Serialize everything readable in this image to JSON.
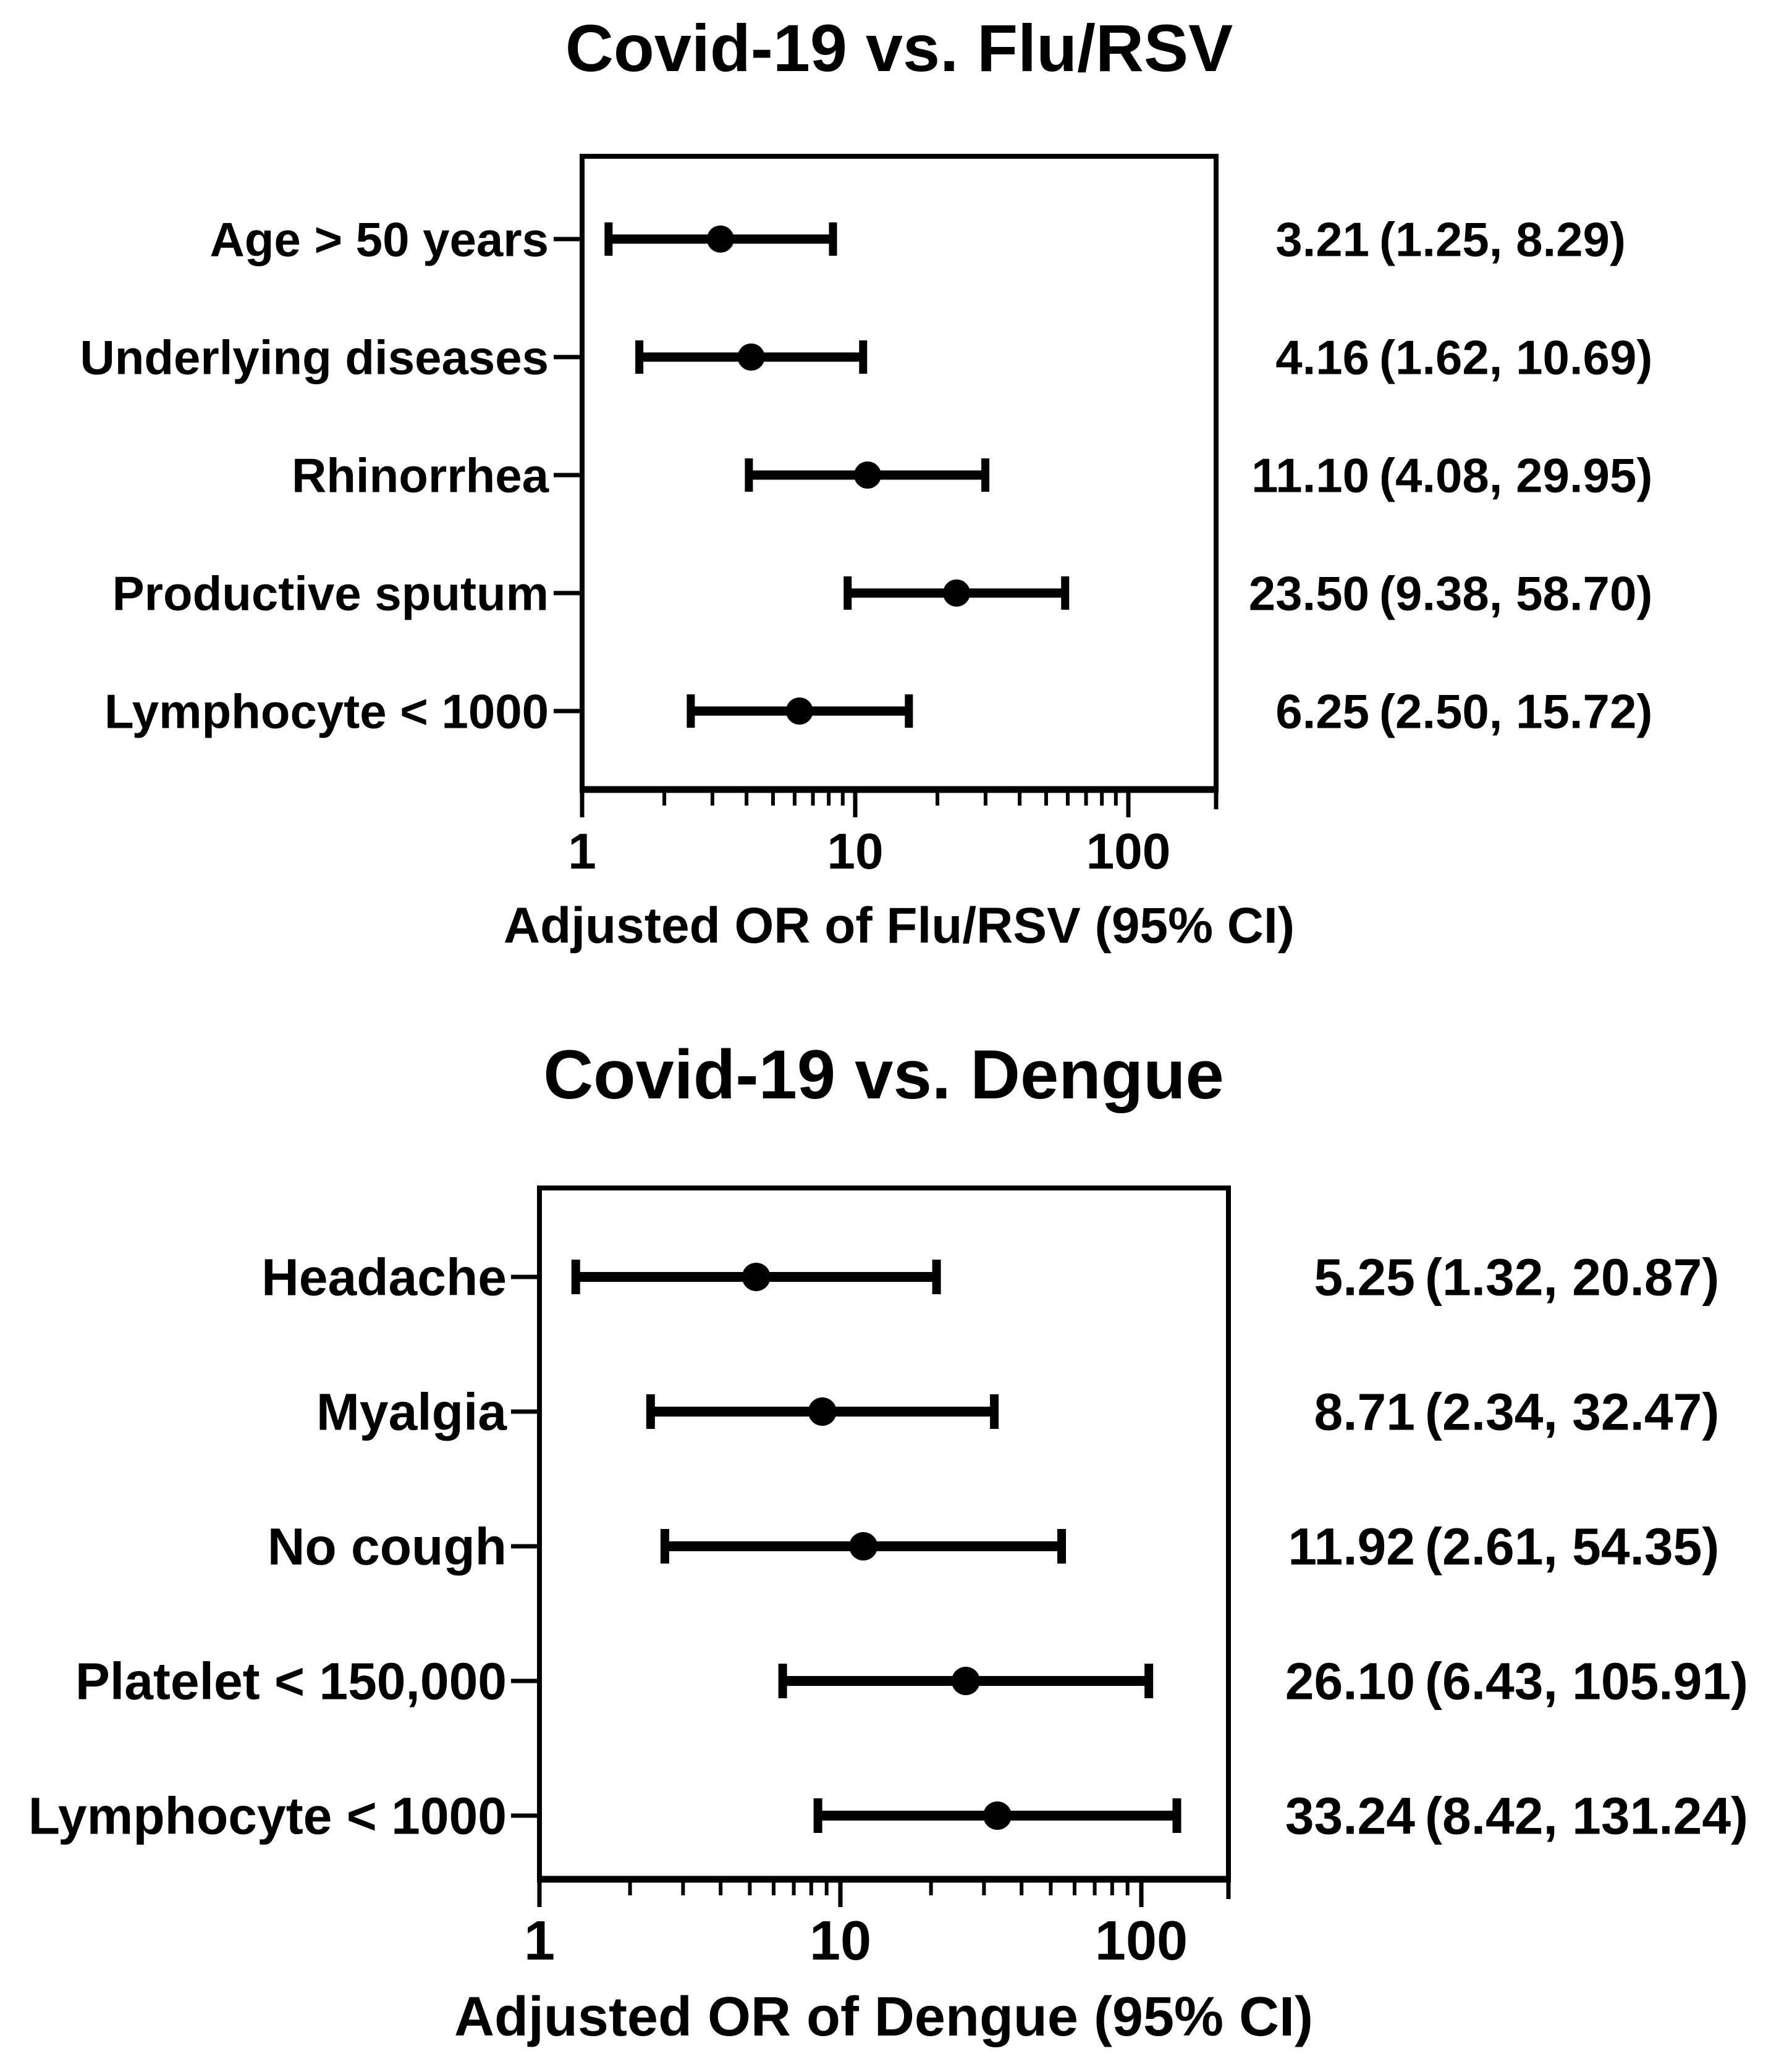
{
  "colors": {
    "ink": "#000000",
    "background": "#ffffff"
  },
  "chart_data": [
    {
      "type": "forest",
      "title": "Covid-19 vs. Flu/RSV",
      "xlabel": "Adjusted OR of Flu/RSV (95% CI)",
      "xscale": "log",
      "xticks": [
        1,
        10,
        100
      ],
      "xlim": [
        1,
        208
      ],
      "grid": false,
      "legend": false,
      "rows": [
        {
          "label": "Age > 50 years",
          "or": 3.21,
          "lo": 1.25,
          "hi": 8.29,
          "or_text": "3.21",
          "ci_text": "(1.25, 8.29)"
        },
        {
          "label": "Underlying diseases",
          "or": 4.16,
          "lo": 1.62,
          "hi": 10.69,
          "or_text": "4.16",
          "ci_text": "(1.62, 10.69)"
        },
        {
          "label": "Rhinorrhea",
          "or": 11.1,
          "lo": 4.08,
          "hi": 29.95,
          "or_text": "11.10",
          "ci_text": "(4.08, 29.95)"
        },
        {
          "label": "Productive sputum",
          "or": 23.5,
          "lo": 9.38,
          "hi": 58.7,
          "or_text": "23.50",
          "ci_text": "(9.38, 58.70)"
        },
        {
          "label": "Lymphocyte < 1000",
          "or": 6.25,
          "lo": 2.5,
          "hi": 15.72,
          "or_text": "6.25",
          "ci_text": "(2.50, 15.72)"
        }
      ]
    },
    {
      "type": "forest",
      "title": "Covid-19 vs. Dengue",
      "xlabel": "Adjusted OR of Dengue (95% CI)",
      "xscale": "log",
      "xticks": [
        1,
        10,
        100
      ],
      "xlim": [
        1,
        196
      ],
      "grid": false,
      "legend": false,
      "rows": [
        {
          "label": "Headache",
          "or": 5.25,
          "lo": 1.32,
          "hi": 20.87,
          "or_text": "5.25",
          "ci_text": "(1.32, 20.87)"
        },
        {
          "label": "Myalgia",
          "or": 8.71,
          "lo": 2.34,
          "hi": 32.47,
          "or_text": "8.71",
          "ci_text": "(2.34, 32.47)"
        },
        {
          "label": "No cough",
          "or": 11.92,
          "lo": 2.61,
          "hi": 54.35,
          "or_text": "11.92",
          "ci_text": "(2.61, 54.35)"
        },
        {
          "label": "Platelet < 150,000",
          "or": 26.1,
          "lo": 6.43,
          "hi": 105.91,
          "or_text": "26.10",
          "ci_text": "(6.43, 105.91)"
        },
        {
          "label": "Lymphocyte < 1000",
          "or": 33.24,
          "lo": 8.42,
          "hi": 131.24,
          "or_text": "33.24",
          "ci_text": "(8.42, 131.24)"
        }
      ]
    }
  ]
}
